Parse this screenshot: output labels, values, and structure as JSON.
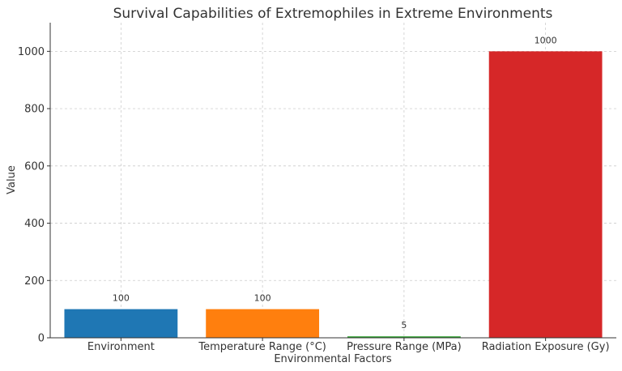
{
  "chart_data": {
    "type": "bar",
    "title": "Survival Capabilities of Extremophiles in Extreme Environments",
    "xlabel": "Environmental Factors",
    "ylabel": "Value",
    "categories": [
      "Environment",
      "Temperature Range (°C)",
      "Pressure Range (MPa)",
      "Radiation Exposure (Gy)"
    ],
    "values": [
      100,
      100,
      5,
      1000
    ],
    "data_labels": [
      "100",
      "100",
      "5",
      "1000"
    ],
    "colors": [
      "#1f77b4",
      "#ff7f0e",
      "#2ca02c",
      "#d62728"
    ],
    "ylim": [
      0,
      1100
    ],
    "yticks": [
      0,
      200,
      400,
      600,
      800,
      1000
    ],
    "ytick_labels": [
      "0",
      "200",
      "400",
      "600",
      "800",
      "1000"
    ],
    "grid": true
  }
}
